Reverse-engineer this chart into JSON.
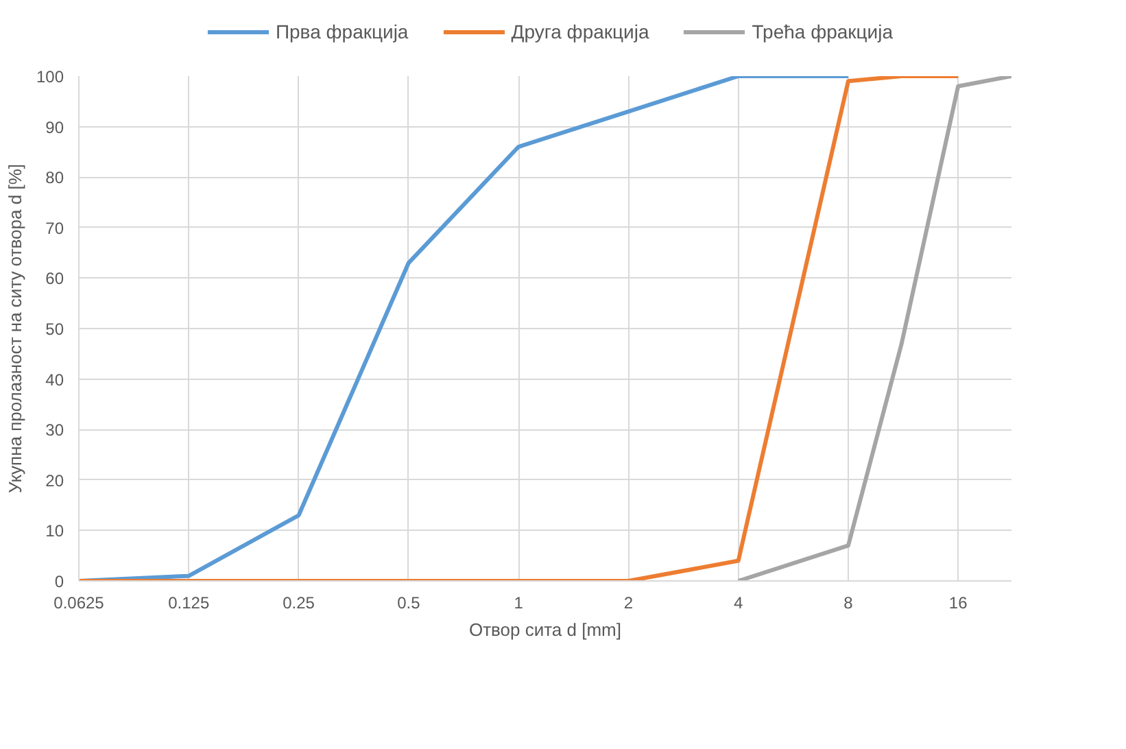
{
  "chart_data": {
    "type": "line",
    "xlabel": "Отвор сита d [mm]",
    "ylabel": "Укупна пролазност на ситу отвора d [%]",
    "log": "x",
    "xlim": [
      0.0625,
      22.4
    ],
    "xticks": [
      0.0625,
      0.125,
      0.25,
      0.5,
      1,
      2,
      4,
      8,
      16
    ],
    "ylim": [
      0,
      100
    ],
    "yticks": [
      0,
      10,
      20,
      30,
      40,
      50,
      60,
      70,
      80,
      90,
      100
    ],
    "grid": true,
    "legend": "top",
    "marker": "none",
    "line_style": "solid",
    "series": [
      {
        "name": "Прва фракција",
        "color": "#5b9bd5",
        "x": [
          0.0625,
          0.125,
          0.25,
          0.5,
          1,
          2,
          4,
          8
        ],
        "values": [
          0,
          1,
          13,
          63,
          86,
          93,
          100,
          100
        ]
      },
      {
        "name": "Друга фракција",
        "color": "#ed7d31",
        "x": [
          0.0625,
          0.125,
          0.25,
          0.5,
          1,
          2,
          4,
          8,
          11.2,
          16
        ],
        "values": [
          0,
          0,
          0,
          0,
          0,
          0,
          4,
          99,
          100,
          100
        ]
      },
      {
        "name": "Трећа фракција",
        "color": "#a5a5a5",
        "x": [
          4,
          8,
          11.2,
          16,
          22.4
        ],
        "values": [
          0,
          7,
          47,
          98,
          100
        ]
      }
    ]
  }
}
